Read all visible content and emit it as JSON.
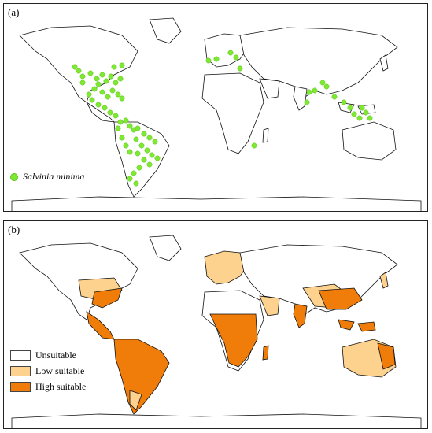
{
  "panel_a": {
    "label": "(a)",
    "legend_label": "Salvinia minima",
    "point_color": "#7ee832"
  },
  "panel_b": {
    "label": "(b)",
    "legend": [
      {
        "label": "Unsuitable",
        "color": "#ffffff"
      },
      {
        "label": "Low suitable",
        "color": "#fcd28e"
      },
      {
        "label": "High suitable",
        "color": "#f07d0a"
      }
    ]
  }
}
